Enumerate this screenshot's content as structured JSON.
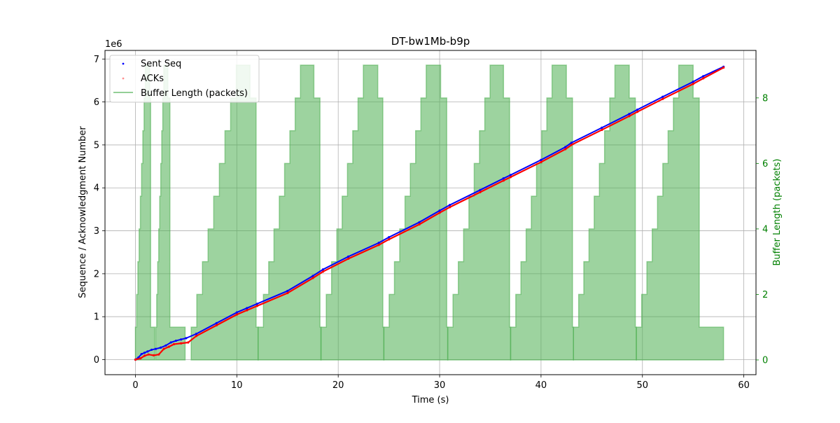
{
  "chart_data": {
    "type": "line",
    "title": "DT-bw1Mb-b9p",
    "xlabel": "Time (s)",
    "ylabel": "Sequence / Acknowledgment Number",
    "y2label": "Buffer Length (packets)",
    "y_offset_text": "1e6",
    "xlim": [
      -3,
      61.2
    ],
    "ylim": [
      -0.35,
      7.2
    ],
    "y2lim": [
      -0.45,
      9.45
    ],
    "xticks": [
      0,
      10,
      20,
      30,
      40,
      50,
      60
    ],
    "yticks": [
      0,
      1,
      2,
      3,
      4,
      5,
      6,
      7
    ],
    "y2ticks": [
      0,
      2,
      4,
      6,
      8
    ],
    "y_units_note": "left axis values in units of 1e6",
    "grid": true,
    "legend_position": "upper-left",
    "series": [
      {
        "name": "Sent Seq",
        "kind": "scatter",
        "color": "#0000ff",
        "axis": "left",
        "x": [
          0,
          0.3,
          0.6,
          0.9,
          1.2,
          1.6,
          2.0,
          2.5,
          3.0,
          3.5,
          4.0,
          4.5,
          5.0,
          6.0,
          8.0,
          10.0,
          11.0,
          12.0,
          15.0,
          17.5,
          18.5,
          21.0,
          24.0,
          25.0,
          28.0,
          30.0,
          31.0,
          34.0,
          36.3,
          37.0,
          40.0,
          42.4,
          43.0,
          46.0,
          48.7,
          49.5,
          52.0,
          55.0,
          56.0,
          58.0
        ],
        "values": [
          0,
          0.05,
          0.13,
          0.16,
          0.19,
          0.23,
          0.25,
          0.28,
          0.33,
          0.4,
          0.44,
          0.47,
          0.5,
          0.6,
          0.85,
          1.1,
          1.2,
          1.3,
          1.6,
          1.95,
          2.1,
          2.4,
          2.72,
          2.85,
          3.2,
          3.47,
          3.6,
          3.95,
          4.22,
          4.3,
          4.65,
          4.95,
          5.05,
          5.4,
          5.72,
          5.82,
          6.12,
          6.47,
          6.6,
          6.82
        ]
      },
      {
        "name": "ACKs",
        "kind": "scatter",
        "color": "#ff0000",
        "axis": "left",
        "x": [
          0,
          0.5,
          0.9,
          1.3,
          1.8,
          2.3,
          2.8,
          3.3,
          3.8,
          4.5,
          5.2,
          6.0,
          8.0,
          10.0,
          11.0,
          12.0,
          15.0,
          17.5,
          18.5,
          21.0,
          24.0,
          25.0,
          28.0,
          30.0,
          31.0,
          34.0,
          36.3,
          37.0,
          40.0,
          42.4,
          43.0,
          46.0,
          48.7,
          49.5,
          52.0,
          55.0,
          56.0,
          58.0
        ],
        "values": [
          0,
          0.03,
          0.09,
          0.12,
          0.1,
          0.12,
          0.25,
          0.3,
          0.36,
          0.38,
          0.4,
          0.55,
          0.8,
          1.05,
          1.15,
          1.25,
          1.55,
          1.9,
          2.05,
          2.35,
          2.67,
          2.8,
          3.15,
          3.42,
          3.55,
          3.9,
          4.17,
          4.25,
          4.6,
          4.9,
          5.0,
          5.35,
          5.67,
          5.77,
          6.07,
          6.42,
          6.55,
          6.8
        ]
      },
      {
        "name": "Buffer Length (packets)",
        "kind": "step-fill",
        "color": "#4caf50",
        "axis": "right",
        "cycles": [
          {
            "start": 0.0,
            "ramp_end": 1.1,
            "peak": 9,
            "peak_end": 1.4,
            "drop": 1.5,
            "tail_end": 1.9
          },
          {
            "start": 2.0,
            "ramp_end": 2.9,
            "peak": 9,
            "peak_end": 3.2,
            "drop": 3.4,
            "tail_end": 4.9
          },
          {
            "start": 5.5,
            "ramp_end": 10.5,
            "peak": 9,
            "peak_end": 11.3,
            "drop": 11.9,
            "tail_end": 12.1
          },
          {
            "start": 12.1,
            "ramp_end": 16.8,
            "peak": 9,
            "peak_end": 17.6,
            "drop": 18.2,
            "tail_end": 18.3
          },
          {
            "start": 18.3,
            "ramp_end": 23.0,
            "peak": 9,
            "peak_end": 23.9,
            "drop": 24.4,
            "tail_end": 24.5
          },
          {
            "start": 24.5,
            "ramp_end": 29.2,
            "peak": 9,
            "peak_end": 30.1,
            "drop": 30.7,
            "tail_end": 30.8
          },
          {
            "start": 30.8,
            "ramp_end": 35.5,
            "peak": 9,
            "peak_end": 36.3,
            "drop": 36.9,
            "tail_end": 37.0
          },
          {
            "start": 37.0,
            "ramp_end": 41.6,
            "peak": 9,
            "peak_end": 42.5,
            "drop": 43.1,
            "tail_end": 43.2
          },
          {
            "start": 43.2,
            "ramp_end": 47.8,
            "peak": 9,
            "peak_end": 48.7,
            "drop": 49.3,
            "tail_end": 49.4
          },
          {
            "start": 49.4,
            "ramp_end": 54.1,
            "peak": 9,
            "peak_end": 55.0,
            "drop": 55.6,
            "tail_end": 58.0
          }
        ]
      }
    ]
  }
}
